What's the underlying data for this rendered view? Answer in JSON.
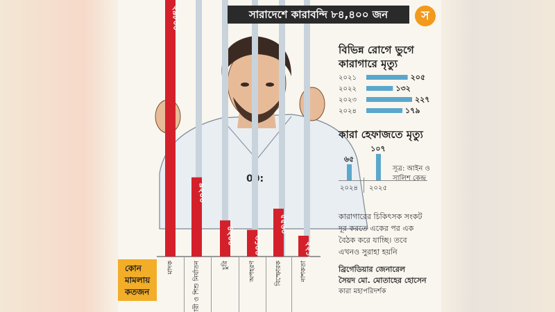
{
  "header": {
    "title": "সারাদেশে কারাবন্দি ৮৪,৪০০ জন",
    "logo_text": "স"
  },
  "disease_panel": {
    "heading_line1": "বিভিন্ন রোগে ভুগে",
    "heading_line2": "কারাগারে মৃত্যু"
  },
  "custody_panel": {
    "heading": "কারা হেফাজতে মৃত্যু",
    "source_line1": "সূত্র: আইন ও",
    "source_line2": "সালিশ কেন্দ্র"
  },
  "quote": {
    "line1": "কারাগারের চিকিৎসক সংকট",
    "line2": "দূর করতে একের পর এক",
    "line3": "বৈঠক করে যাচ্ছি।  তবে",
    "line4": "এখনও সুরাহা হয়নি"
  },
  "speaker": {
    "name_line1": "ব্রিগেডিয়ার জেনারেল",
    "name_line2": "সৈয়দ মো. মোতাহের হোসেন",
    "title": "কারা মহাপরিদর্শক"
  },
  "legend": {
    "line1": "কোন",
    "line2": "মামলায়",
    "line3": "কতজন"
  },
  "colors": {
    "bar_red": "#d4202a",
    "bar_blue": "#5ba7cc",
    "bar_gray": "#c9d3dc",
    "legend_yellow": "#f2ad29",
    "title_bg": "#2a2a2a",
    "logo_orange": "#f29a1d"
  },
  "chart_data": [
    {
      "type": "bar",
      "orientation": "vertical",
      "categories": [
        "মাদক",
        "নারী ও শিশু নির্যাতন",
        "চুরি",
        "অপহরণ",
        "বিস্ফোরক",
        "নাশকতা"
      ],
      "values": [
        29800,
        9200,
        4200,
        3100,
        5560,
        2210
      ],
      "value_labels": [
        "২৯৮০০",
        "৯২০০",
        "৪২০০",
        "৩১০০",
        "৫৫৬০",
        "২২১০"
      ]
    },
    {
      "type": "bar",
      "orientation": "horizontal",
      "categories": [
        "২০২১",
        "২০২২",
        "২০২৩",
        "২০২৪"
      ],
      "values": [
        205,
        132,
        227,
        179
      ],
      "value_labels": [
        "২০৫",
        "১৩২",
        "২২৭",
        "১৭৯"
      ]
    },
    {
      "type": "bar",
      "orientation": "vertical",
      "categories": [
        "২০২৪",
        "২০২৫"
      ],
      "values": [
        65,
        107
      ],
      "value_labels": [
        "৬৫",
        "১০৭"
      ]
    }
  ]
}
